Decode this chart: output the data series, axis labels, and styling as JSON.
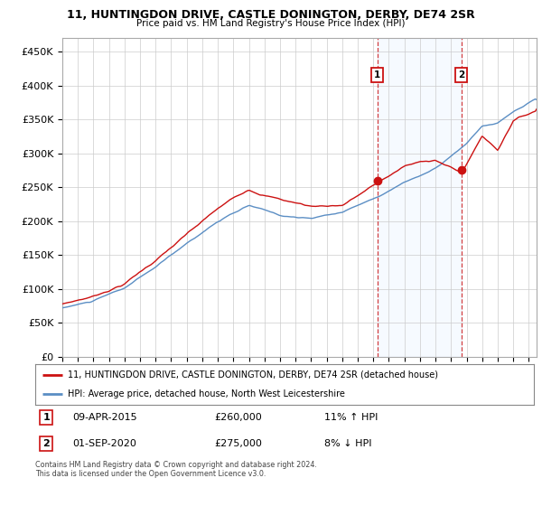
{
  "title": "11, HUNTINGDON DRIVE, CASTLE DONINGTON, DERBY, DE74 2SR",
  "subtitle": "Price paid vs. HM Land Registry's House Price Index (HPI)",
  "ylim": [
    0,
    470000
  ],
  "yticks": [
    0,
    50000,
    100000,
    150000,
    200000,
    250000,
    300000,
    350000,
    400000,
    450000
  ],
  "ytick_labels": [
    "£0",
    "£50K",
    "£100K",
    "£150K",
    "£200K",
    "£250K",
    "£300K",
    "£350K",
    "£400K",
    "£450K"
  ],
  "hpi_color": "#5b8ec4",
  "price_color": "#cc1111",
  "sale1_date": "09-APR-2015",
  "sale1_price": 260000,
  "sale1_hpi": "11% ↑ HPI",
  "sale2_date": "01-SEP-2020",
  "sale2_price": 275000,
  "sale2_hpi": "8% ↓ HPI",
  "legend_label1": "11, HUNTINGDON DRIVE, CASTLE DONINGTON, DERBY, DE74 2SR (detached house)",
  "legend_label2": "HPI: Average price, detached house, North West Leicestershire",
  "footnote": "Contains HM Land Registry data © Crown copyright and database right 2024.\nThis data is licensed under the Open Government Licence v3.0.",
  "highlight_color": "#ddeeff",
  "vline_color": "#cc1111",
  "background_color": "#ffffff",
  "grid_color": "#cccccc",
  "sale1_t": 2015.25,
  "sale2_t": 2020.67,
  "xmin": 1995.0,
  "xmax": 2025.5
}
